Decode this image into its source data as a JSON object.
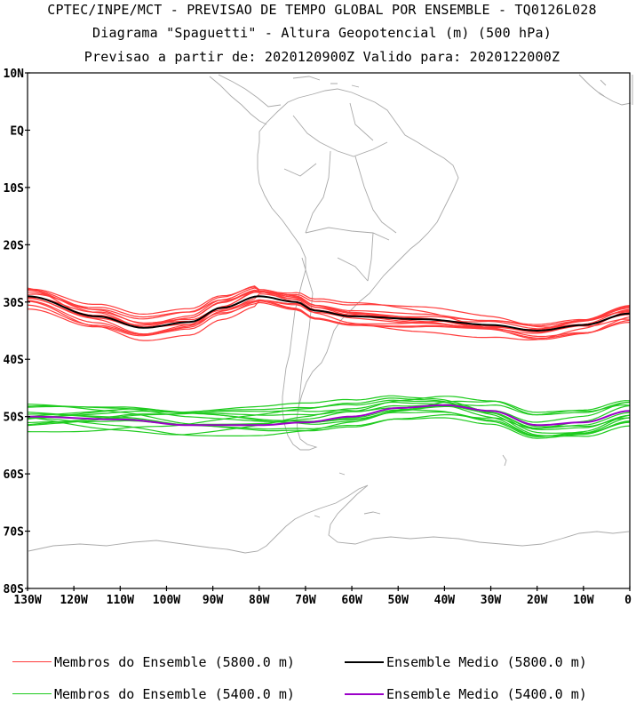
{
  "title": {
    "line1": "CPTEC/INPE/MCT - PREVISAO DE TEMPO GLOBAL POR ENSEMBLE - TQ0126L028",
    "line2": "Diagrama \"Spaguetti\" - Altura Geopotencial (m) (500 hPa)",
    "line3": "Previsao a partir de: 2020120900Z  Valido para: 2020122000Z"
  },
  "map": {
    "lat_labels": [
      "10N",
      "EQ",
      "10S",
      "20S",
      "30S",
      "40S",
      "50S",
      "60S",
      "70S",
      "80S"
    ],
    "lon_labels": [
      "130W",
      "120W",
      "110W",
      "100W",
      "90W",
      "80W",
      "70W",
      "60W",
      "50W",
      "40W",
      "30W",
      "20W",
      "10W",
      "0"
    ],
    "lat_range": [
      10,
      -80
    ],
    "lon_range": [
      -130,
      0
    ],
    "colors": {
      "members_5800": "#ff3b3b",
      "mean_5800": "#000000",
      "members_5400": "#1ecb1e",
      "mean_5400": "#9b00c8",
      "coast": "#a9a9a9"
    }
  },
  "legend": {
    "members_5800": "Membros do Ensemble (5800.0 m)",
    "mean_5800": "Ensemble Medio (5800.0 m)",
    "members_5400": "Membros do Ensemble (5400.0 m)",
    "mean_5400": "Ensemble Medio (5400.0 m)"
  }
}
